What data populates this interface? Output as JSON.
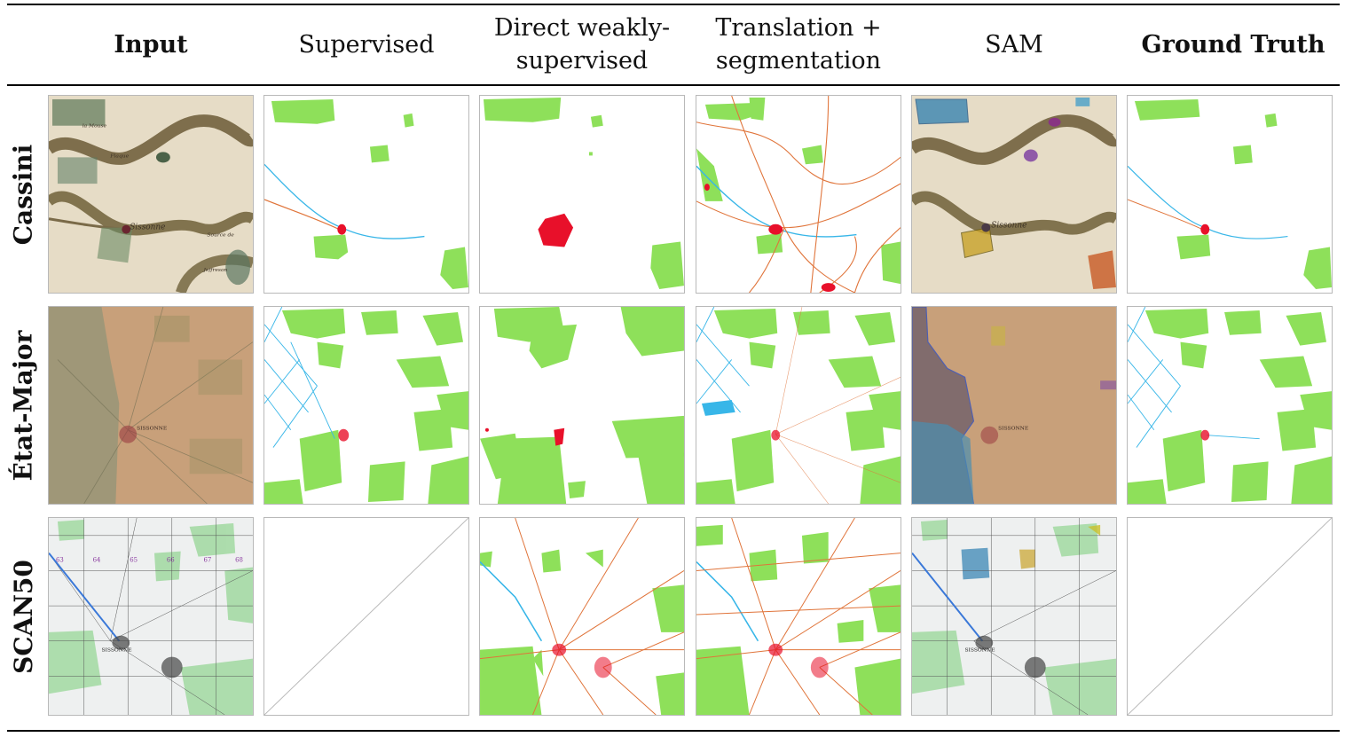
{
  "columns": [
    {
      "label": "Input",
      "bold": true
    },
    {
      "label": "Supervised",
      "bold": false
    },
    {
      "label": "Direct weakly-supervised",
      "line1": "Direct weakly-",
      "line2": "supervised",
      "bold": false
    },
    {
      "label": "Translation + segmentation",
      "line1": "Translation +",
      "line2": "segmentation",
      "bold": false
    },
    {
      "label": "SAM",
      "bold": false
    },
    {
      "label": "Ground Truth",
      "bold": true
    }
  ],
  "rows": [
    {
      "label": "Cassini"
    },
    {
      "label": "État-Major"
    },
    {
      "label": "SCAN50"
    }
  ],
  "map_text": {
    "cassini_town": "Sissonne",
    "cassini_labels": [
      "la Mouse",
      "Flaque",
      "Jeffreson",
      "Source de"
    ],
    "etat_town": "SISSONNE",
    "scan_town": "SISSONNE",
    "scan_grid_numbers": [
      "63",
      "64",
      "65",
      "66",
      "67",
      "68"
    ]
  },
  "legend_colors": {
    "forest": "#8ee05a",
    "water": "#38b6e8",
    "road": "#e0743a",
    "building": "#e8102a"
  },
  "missing_cells": [
    "SCAN50-Supervised",
    "SCAN50-Ground Truth"
  ]
}
